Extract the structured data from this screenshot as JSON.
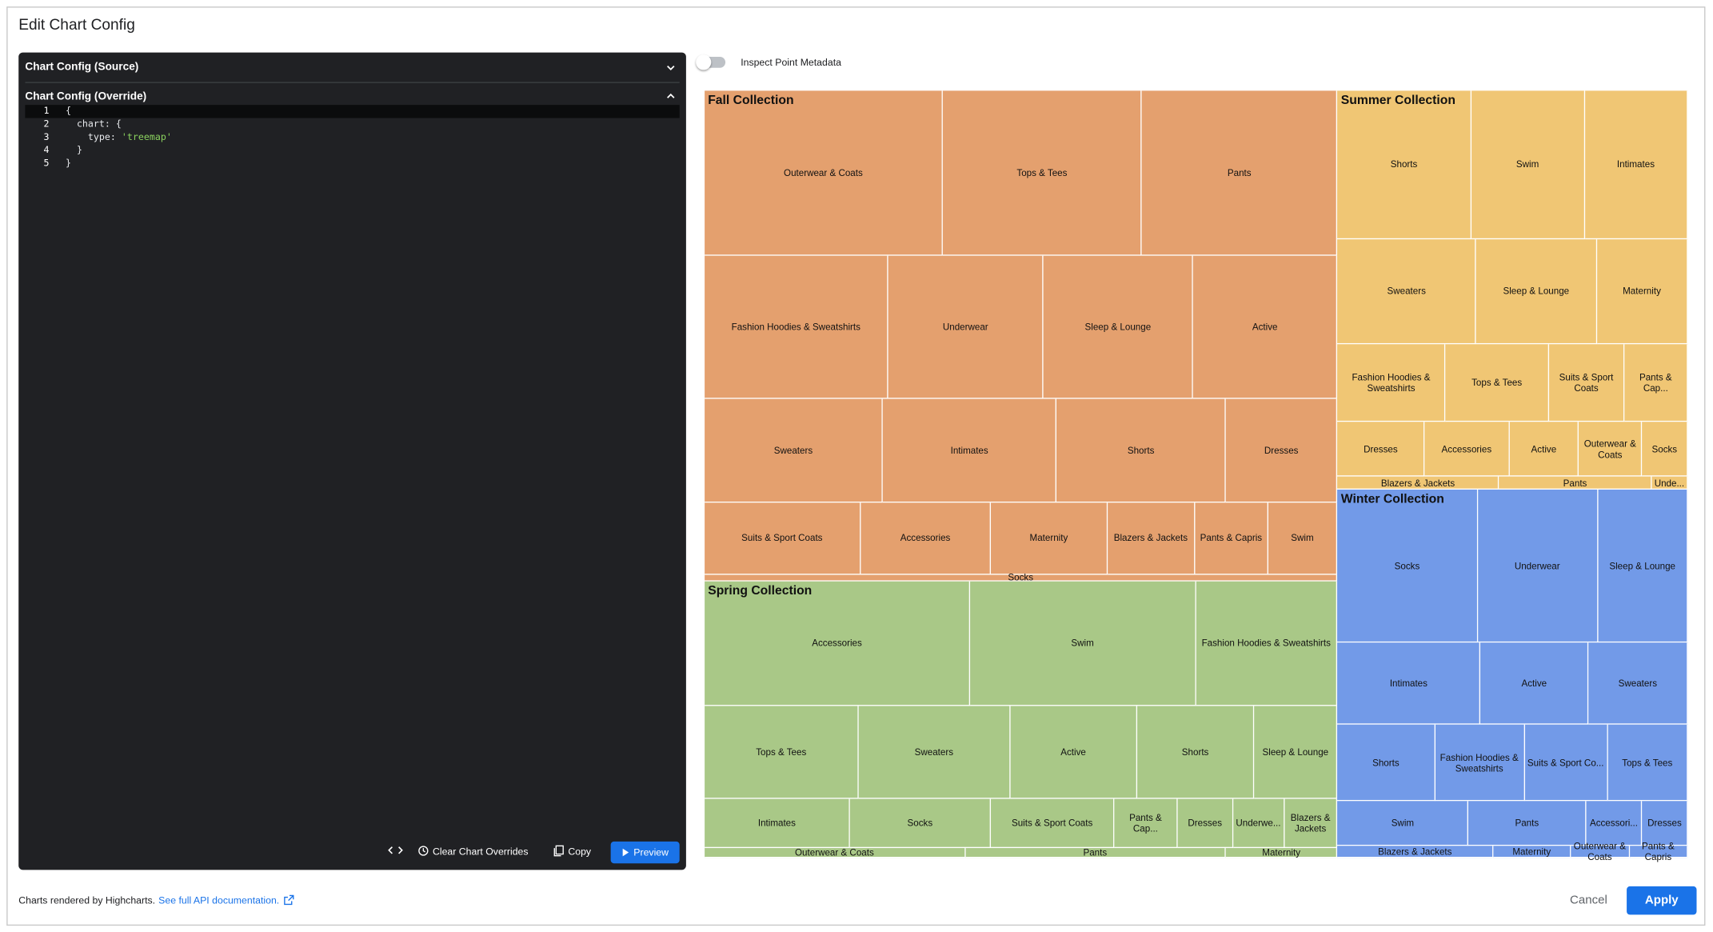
{
  "dialog": {
    "title": "Edit Chart Config"
  },
  "editor": {
    "source_header": "Chart Config (Source)",
    "override_header": "Chart Config (Override)",
    "line_numbers": [
      1,
      2,
      3,
      4,
      5
    ],
    "code_lines": [
      [
        "{"
      ],
      [
        "  chart: {"
      ],
      [
        "    type: ",
        "'treemap'"
      ],
      [
        "  }"
      ],
      [
        "}"
      ]
    ],
    "toolbar": {
      "clear": "Clear Chart Overrides",
      "copy": "Copy",
      "preview": "Preview"
    }
  },
  "toggle_label": "Inspect Point Metadata",
  "chart_data": {
    "type": "treemap",
    "series": [
      {
        "name": "Fall Collection",
        "color": "#e4a06e",
        "categories": [
          "Outerwear & Coats",
          "Tops & Tees",
          "Pants",
          "Fashion Hoodies & Sweatshirts",
          "Underwear",
          "Sleep & Lounge",
          "Active",
          "Sweaters",
          "Intimates",
          "Shorts",
          "Dresses",
          "Suits & Sport Coats",
          "Accessories",
          "Maternity",
          "Blazers & Jackets",
          "Pants & Capris",
          "Swim",
          "Socks"
        ],
        "values": [
          329,
          275,
          270,
          220,
          186,
          179,
          173,
          155,
          151,
          147,
          97,
          94,
          79,
          70,
          53,
          44,
          42,
          35
        ]
      },
      {
        "name": "Spring Collection",
        "color": "#a9c887",
        "categories": [
          "Accessories",
          "Swim",
          "Fashion Hoodies & Sweatshirts",
          "Tops & Tees",
          "Sweaters",
          "Active",
          "Shorts",
          "Sleep & Lounge",
          "Intimates",
          "Socks",
          "Suits & Sport Coats",
          "Pants & Cap...",
          "Dresses",
          "Underwe...",
          "Blazers & Jackets",
          "Outerwear & Coats",
          "Pants",
          "Maternity"
        ],
        "values": [
          277,
          235,
          148,
          120,
          118,
          99,
          91,
          65,
          60,
          58,
          51,
          26,
          23,
          21,
          22,
          21,
          21,
          9
        ]
      },
      {
        "name": "Summer Collection",
        "color": "#f0c674",
        "categories": [
          "Shorts",
          "Swim",
          "Intimates",
          "Sweaters",
          "Sleep & Lounge",
          "Maternity",
          "Fashion Hoodies & Sweatshirts",
          "Tops & Tees",
          "Suits & Sport Coats",
          "Pants & Cap...",
          "Dresses",
          "Accessories",
          "Active",
          "Outerwear & Coats",
          "Socks",
          "Blazers & Jackets",
          "Pants",
          "Unde..."
        ],
        "values": [
          166,
          141,
          128,
          122,
          106,
          80,
          70,
          67,
          49,
          41,
          40,
          39,
          32,
          29,
          21,
          18,
          17,
          4
        ]
      },
      {
        "name": "Winter Collection",
        "color": "#729ae8",
        "categories": [
          "Socks",
          "Underwear",
          "Sleep & Lounge",
          "Intimates",
          "Active",
          "Sweaters",
          "Shorts",
          "Fashion Hoodies & Sweatshirts",
          "Suits & Sport Co...",
          "Tops & Tees",
          "Swim",
          "Pants",
          "Accessori...",
          "Dresses",
          "Blazers & Jackets",
          "Maternity",
          "Outerwear & Coats",
          "Pants & Capris"
        ],
        "values": [
          179,
          154,
          115,
          98,
          74,
          68,
          62,
          57,
          53,
          51,
          49,
          44,
          21,
          17,
          16,
          8,
          6,
          6
        ]
      }
    ]
  },
  "footer": {
    "credit": "Charts rendered by Highcharts.",
    "link": "See full API documentation.",
    "cancel": "Cancel",
    "apply": "Apply"
  }
}
